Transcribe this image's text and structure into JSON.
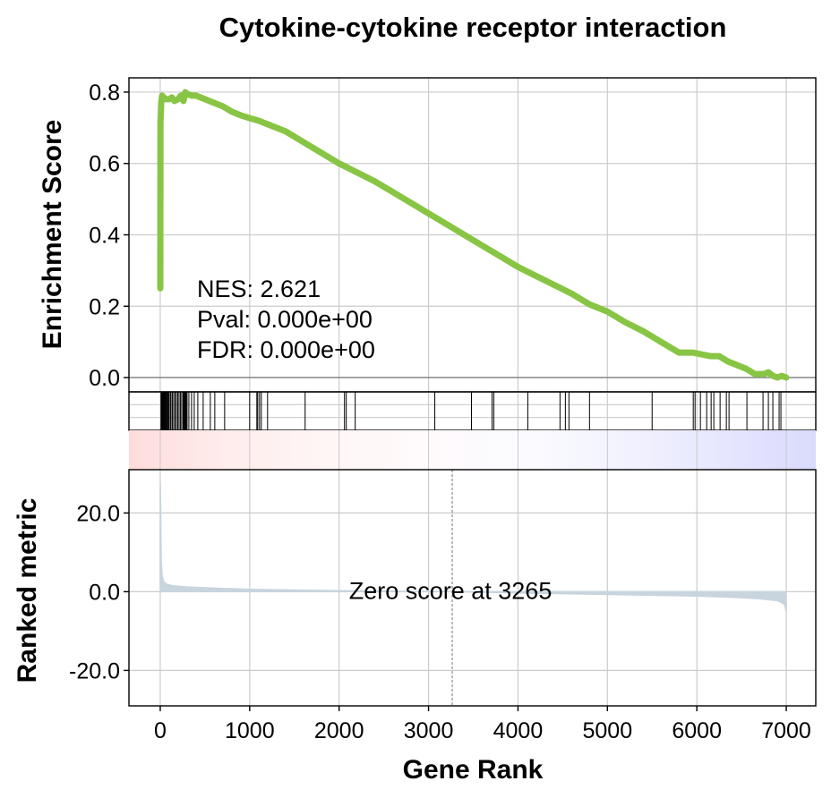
{
  "chart_data": {
    "type": "line",
    "title": "Cytokine-cytokine receptor interaction",
    "xlabel": "Gene Rank",
    "es_ylabel": "Enrichment Score",
    "metric_ylabel": "Ranked metric",
    "xlim": [
      -350,
      7330
    ],
    "xticks": [
      0,
      1000,
      2000,
      3000,
      4000,
      5000,
      6000,
      7000
    ],
    "x_tick_labels": [
      "0",
      "1000",
      "2000",
      "3000",
      "4000",
      "5000",
      "6000",
      "7000"
    ],
    "es_ylim": [
      -0.04,
      0.84
    ],
    "es_yticks": [
      0.0,
      0.2,
      0.4,
      0.6,
      0.8
    ],
    "es_ytick_labels": [
      "0.0",
      "0.2",
      "0.4",
      "0.6",
      "0.8"
    ],
    "metric_ylim": [
      -29,
      31
    ],
    "metric_yticks": [
      -20,
      0,
      20
    ],
    "metric_ytick_labels": [
      "-20.0",
      "0.0",
      "20.0"
    ],
    "grid": true,
    "stats": {
      "nes": "NES: 2.621",
      "pval": "Pval: 0.000e+00",
      "fdr": "FDR: 0.000e+00"
    },
    "zero_score": {
      "rank": 3265,
      "label": "Zero score at 3265"
    },
    "series": [
      {
        "color": "#88c544",
        "x": [
          0,
          2,
          5,
          10,
          20,
          40,
          60,
          100,
          130,
          160,
          200,
          230,
          260,
          280,
          300,
          350,
          400,
          450,
          500,
          550,
          600,
          700,
          800,
          900,
          1000,
          1100,
          1200,
          1400,
          1600,
          1800,
          2000,
          2200,
          2400,
          2600,
          2800,
          3000,
          3200,
          3400,
          3600,
          3800,
          4000,
          4200,
          4400,
          4600,
          4800,
          5000,
          5200,
          5400,
          5600,
          5800,
          5950,
          6050,
          6150,
          6250,
          6350,
          6450,
          6550,
          6650,
          6750,
          6800,
          6850,
          6900,
          6950,
          7000
        ],
        "y": [
          0.25,
          0.72,
          0.73,
          0.77,
          0.79,
          0.785,
          0.78,
          0.78,
          0.785,
          0.775,
          0.78,
          0.79,
          0.775,
          0.8,
          0.795,
          0.79,
          0.79,
          0.785,
          0.78,
          0.775,
          0.77,
          0.76,
          0.745,
          0.735,
          0.727,
          0.72,
          0.71,
          0.69,
          0.66,
          0.63,
          0.6,
          0.575,
          0.55,
          0.52,
          0.49,
          0.46,
          0.43,
          0.4,
          0.37,
          0.34,
          0.31,
          0.285,
          0.26,
          0.235,
          0.205,
          0.185,
          0.155,
          0.13,
          0.1,
          0.07,
          0.07,
          0.065,
          0.06,
          0.06,
          0.045,
          0.035,
          0.025,
          0.01,
          0.01,
          0.015,
          0.005,
          0.0,
          0.005,
          0.0
        ]
      }
    ],
    "hits": [
      8,
      12,
      18,
      25,
      30,
      36,
      42,
      50,
      58,
      66,
      75,
      85,
      95,
      110,
      120,
      135,
      150,
      165,
      180,
      195,
      210,
      225,
      240,
      255,
      263,
      270,
      278,
      283,
      290,
      300,
      320,
      350,
      380,
      420,
      480,
      560,
      610,
      720,
      1000,
      1080,
      1090,
      1110,
      1130,
      1200,
      1620,
      2060,
      2080,
      2180,
      3070,
      3480,
      3710,
      3730,
      4110,
      4470,
      4530,
      4570,
      4800,
      5500,
      5960,
      5980,
      6040,
      6110,
      6160,
      6190,
      6260,
      6330,
      6360,
      6560,
      6740,
      6800,
      6850,
      6920,
      6940
    ],
    "metric": {
      "x": [
        0,
        2,
        5,
        10,
        20,
        40,
        80,
        150,
        300,
        600,
        1000,
        1500,
        2000,
        2500,
        3000,
        3265,
        3500,
        4000,
        4500,
        5000,
        5500,
        6000,
        6400,
        6700,
        6900,
        6950,
        6980,
        7000
      ],
      "y": [
        28,
        25,
        20,
        8,
        4,
        2.5,
        1.8,
        1.5,
        1.2,
        0.9,
        0.6,
        0.4,
        0.25,
        0.15,
        0.05,
        0.0,
        -0.1,
        -0.3,
        -0.5,
        -0.7,
        -0.9,
        -1.1,
        -1.4,
        -1.8,
        -2.3,
        -2.8,
        -3.2,
        -5
      ],
      "fill": "#c8d4de"
    },
    "heatmap_colors": [
      "#ffdcdc",
      "#ffecec",
      "#fff6f6",
      "#fffafc",
      "#fbfbff",
      "#f3f3ff",
      "#e7e7ff",
      "#dadafc"
    ]
  }
}
